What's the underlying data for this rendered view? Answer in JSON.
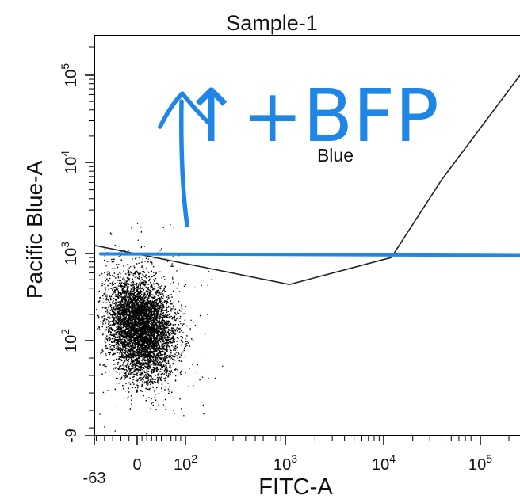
{
  "chart_data": {
    "type": "scatter",
    "title": "Sample-1",
    "xlabel": "FITC-A",
    "ylabel": "Pacific Blue-A",
    "x_scale": "biexponential",
    "y_scale": "biexponential",
    "x_ticks": [
      {
        "value": -63,
        "base": "-63",
        "exp": ""
      },
      {
        "value": 0,
        "base": "0",
        "exp": ""
      },
      {
        "value": 100,
        "base": "10",
        "exp": "2"
      },
      {
        "value": 1000,
        "base": "10",
        "exp": "3"
      },
      {
        "value": 10000,
        "base": "10",
        "exp": "4"
      },
      {
        "value": 100000,
        "base": "10",
        "exp": "5"
      }
    ],
    "y_ticks": [
      {
        "value": -9,
        "base": "-9",
        "exp": ""
      },
      {
        "value": 100,
        "base": "10",
        "exp": "2"
      },
      {
        "value": 1000,
        "base": "10",
        "exp": "3"
      },
      {
        "value": 10000,
        "base": "10",
        "exp": "4"
      },
      {
        "value": 100000,
        "base": "10",
        "exp": "5"
      }
    ],
    "cluster": {
      "center": [
        0,
        110
      ],
      "events": "dense population at low FITC and low Pacific Blue"
    },
    "gate": {
      "name": "Blue",
      "vertices": [
        [
          -63,
          1230
        ],
        [
          1100,
          440
        ],
        [
          12000,
          900
        ],
        [
          40000,
          6500
        ],
        [
          262000,
          100000
        ]
      ]
    },
    "threshold_y": 950,
    "annotation": "↑+BFP",
    "colors": {
      "annotation": "#1f86e6",
      "gate": "#222222",
      "points": "#000000"
    }
  }
}
